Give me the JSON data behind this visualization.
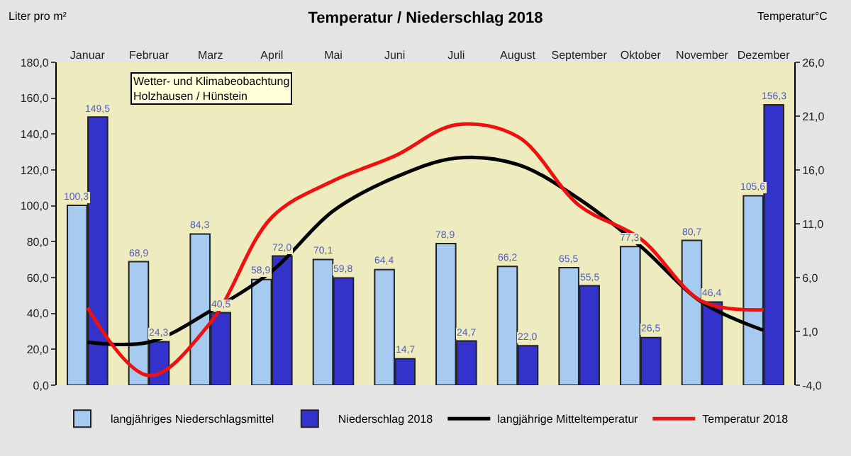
{
  "chart_data": {
    "type": "bar",
    "title": "Temperatur / Niederschlag 2018",
    "ylabel": "Liter pro m²",
    "y2label": "Temperatur°C",
    "categories": [
      "Januar",
      "Februar",
      "Marz",
      "April",
      "Mai",
      "Juni",
      "Juli",
      "August",
      "September",
      "Oktober",
      "November",
      "Dezember"
    ],
    "series": [
      {
        "name": "langjähriges Niederschlagsmittel",
        "color": "#a6caf0",
        "values": [
          100.3,
          68.9,
          84.3,
          58.9,
          70.1,
          64.4,
          78.9,
          66.2,
          65.5,
          77.3,
          80.7,
          105.6
        ],
        "value_labels": [
          "100,3",
          "68,9",
          "84,3",
          "58,9",
          "70,1",
          "64,4",
          "78,9",
          "66,2",
          "65,5",
          "77,3",
          "80,7",
          "105,6"
        ]
      },
      {
        "name": "Niederschlag 2018",
        "color": "#3333cc",
        "values": [
          149.5,
          24.3,
          40.5,
          72.0,
          59.8,
          14.7,
          24.7,
          22.0,
          55.5,
          26.5,
          46.4,
          156.3
        ],
        "value_labels": [
          "149,5",
          "24,3",
          "40,5",
          "72,0",
          "59,8",
          "14,7",
          "24,7",
          "22,0",
          "55,5",
          "26,5",
          "46,4",
          "156,3"
        ]
      },
      {
        "name": "langjährige Mitteltemperatur",
        "type": "line",
        "axis": "y2",
        "color": "#000000",
        "values": [
          0.0,
          0.0,
          2.9,
          6.6,
          12.2,
          15.3,
          17.1,
          16.5,
          13.3,
          8.9,
          3.7,
          1.1
        ]
      },
      {
        "name": "Temperatur 2018",
        "type": "line",
        "axis": "y2",
        "color": "#ee1111",
        "values": [
          3.2,
          -3.1,
          1.8,
          11.6,
          15.0,
          17.3,
          20.2,
          19.1,
          12.7,
          9.6,
          3.8,
          3.0
        ]
      }
    ],
    "ylim": [
      0,
      180
    ],
    "yticks": [
      {
        "value": 0,
        "label": "0,0"
      },
      {
        "value": 20,
        "label": "20,0"
      },
      {
        "value": 40,
        "label": "40,0"
      },
      {
        "value": 60,
        "label": "60,0"
      },
      {
        "value": 80,
        "label": "80,0"
      },
      {
        "value": 100,
        "label": "100,0"
      },
      {
        "value": 120,
        "label": "120,0"
      },
      {
        "value": 140,
        "label": "140,0"
      },
      {
        "value": 160,
        "label": "160,0"
      },
      {
        "value": 180,
        "label": "180,0"
      }
    ],
    "y2lim": [
      -4,
      26
    ],
    "y2ticks": [
      {
        "value": -4,
        "label": "-4,0"
      },
      {
        "value": 1,
        "label": "1,0"
      },
      {
        "value": 6,
        "label": "6,0"
      },
      {
        "value": 11,
        "label": "11,0"
      },
      {
        "value": 16,
        "label": "16,0"
      },
      {
        "value": 21,
        "label": "21,0"
      },
      {
        "value": 26,
        "label": "26,0"
      }
    ],
    "annotations": [
      {
        "text": "Wetter- und Klimabeobachtung\nHolzhausen / Hünstein"
      }
    ],
    "legend": "bottom",
    "grid": false,
    "marker": "none",
    "line_style": "solid"
  }
}
